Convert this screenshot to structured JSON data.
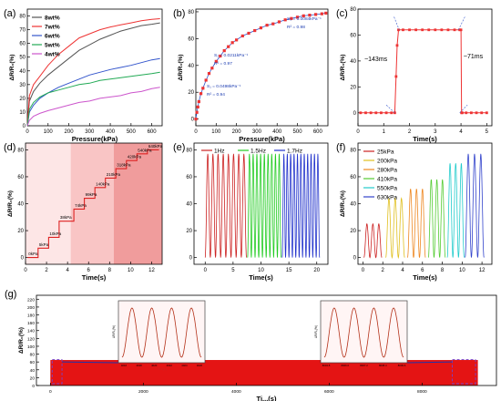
{
  "chart_data": [
    {
      "panel": "(a)",
      "type": "line",
      "xlabel": "Pressure(kPa)",
      "ylabel": "ΔR/R₀(%)",
      "xlim": [
        0,
        650
      ],
      "ylim": [
        0,
        85
      ],
      "xticks": [
        0,
        100,
        200,
        300,
        400,
        500,
        600
      ],
      "yticks": [
        0,
        10,
        20,
        30,
        40,
        50,
        60,
        70,
        80
      ],
      "legend": "top-left",
      "series": [
        {
          "name": "8wt%",
          "color": "#555555",
          "x": [
            0,
            10,
            30,
            60,
            100,
            150,
            200,
            250,
            300,
            350,
            400,
            450,
            500,
            550,
            600,
            640
          ],
          "y": [
            0,
            18,
            25,
            31,
            37,
            43,
            49,
            55,
            59,
            63,
            66,
            69,
            71,
            73,
            74,
            75
          ]
        },
        {
          "name": "7wt%",
          "color": "#ee3333",
          "x": [
            0,
            10,
            30,
            60,
            100,
            150,
            200,
            250,
            300,
            350,
            400,
            450,
            500,
            550,
            600,
            640
          ],
          "y": [
            0,
            22,
            30,
            36,
            44,
            52,
            58,
            64,
            67,
            70,
            72,
            73.5,
            75,
            76.5,
            77.5,
            78
          ]
        },
        {
          "name": "6wt%",
          "color": "#3355cc",
          "x": [
            0,
            10,
            30,
            60,
            100,
            150,
            200,
            250,
            300,
            350,
            400,
            450,
            500,
            550,
            600,
            640
          ],
          "y": [
            0,
            10,
            15,
            20,
            24,
            28,
            31,
            34,
            37,
            39,
            41,
            42.5,
            44,
            46,
            48,
            49
          ]
        },
        {
          "name": "5wt%",
          "color": "#22aa55",
          "x": [
            0,
            10,
            30,
            60,
            100,
            150,
            200,
            250,
            300,
            350,
            400,
            450,
            500,
            550,
            600,
            640
          ],
          "y": [
            0,
            12,
            17,
            21,
            24,
            26,
            28,
            30,
            31,
            33,
            34,
            35,
            36,
            37,
            38,
            39
          ]
        },
        {
          "name": "4wt%",
          "color": "#cc55cc",
          "x": [
            0,
            10,
            30,
            60,
            100,
            150,
            200,
            250,
            300,
            350,
            400,
            450,
            500,
            550,
            600,
            640
          ],
          "y": [
            0,
            4,
            7,
            9,
            11,
            13,
            15,
            17,
            18,
            20,
            21,
            22,
            24,
            25,
            27,
            28
          ]
        }
      ]
    },
    {
      "panel": "(b)",
      "type": "scatter",
      "xlabel": "Pressure(kPa)",
      "ylabel": "ΔR/R₀(%)",
      "xlim": [
        0,
        650
      ],
      "ylim": [
        -5,
        82
      ],
      "xticks": [
        0,
        100,
        200,
        300,
        400,
        500,
        600
      ],
      "yticks": [
        0,
        20,
        40,
        60,
        80
      ],
      "series": [
        {
          "name": "",
          "color": "#ee3333",
          "x": [
            0,
            5,
            10,
            15,
            25,
            35,
            50,
            65,
            80,
            100,
            120,
            140,
            160,
            180,
            200,
            230,
            260,
            290,
            320,
            350,
            380,
            410,
            440,
            470,
            500,
            530,
            560,
            590,
            620,
            640
          ],
          "y": [
            0,
            5,
            9,
            13,
            19,
            23,
            29,
            34,
            38,
            43,
            47,
            51,
            54,
            57,
            59,
            62,
            64,
            66,
            68,
            70,
            71,
            72.5,
            74,
            75,
            76,
            77,
            77.5,
            78,
            78.5,
            79
          ]
        }
      ],
      "annotations": [
        {
          "text": "S₃ = 0.0084kPa⁻¹"
        },
        {
          "text": "R² = 0.98"
        },
        {
          "text": "S₂ = 0.0211kPa⁻¹"
        },
        {
          "text": "R² = 0.97"
        },
        {
          "text": "S₁ = 0.0498kPa⁻¹"
        },
        {
          "text": "R² = 0.94"
        }
      ]
    },
    {
      "panel": "(c)",
      "type": "line",
      "xlabel": "Time(s)",
      "ylabel": "ΔR/R₀(%)",
      "xlim": [
        0,
        5.2
      ],
      "ylim": [
        -10,
        80
      ],
      "xticks": [
        0,
        1,
        2,
        3,
        4,
        5
      ],
      "yticks": [
        0,
        20,
        40,
        60,
        80
      ],
      "series": [
        {
          "name": "",
          "color": "#ee3333",
          "x": [
            0.1,
            0.3,
            0.5,
            0.7,
            0.9,
            1.1,
            1.3,
            1.43,
            1.48,
            1.52,
            1.573,
            1.75,
            2.0,
            2.25,
            2.5,
            2.75,
            3.0,
            3.25,
            3.5,
            3.75,
            3.95,
            4.0,
            4.021,
            4.05,
            4.2,
            4.4,
            4.6,
            4.8,
            5.0
          ],
          "y": [
            0,
            0,
            0,
            0,
            0,
            0,
            0,
            0,
            28,
            52,
            64,
            64,
            64,
            64,
            64,
            64,
            64,
            64,
            64,
            64,
            64,
            64,
            0,
            0,
            0,
            0,
            0,
            0,
            0
          ]
        }
      ],
      "annotations": [
        {
          "text": "~143ms"
        },
        {
          "text": "~71ms"
        }
      ]
    },
    {
      "panel": "(d)",
      "type": "line",
      "xlabel": "Time(s)",
      "ylabel": "ΔR/R₀(%)",
      "xlim": [
        0,
        13
      ],
      "ylim": [
        -5,
        85
      ],
      "xticks": [
        0,
        2,
        4,
        6,
        8,
        10,
        12
      ],
      "yticks": [
        0,
        20,
        40,
        60,
        80
      ],
      "steps": [
        {
          "label": "0kPa",
          "x0": 0.2,
          "x1": 1.2,
          "y": 0
        },
        {
          "label": "5kPa",
          "x0": 1.2,
          "x1": 2.2,
          "y": 7
        },
        {
          "label": "10kPa",
          "x0": 2.2,
          "x1": 3.2,
          "y": 15
        },
        {
          "label": "38kPa",
          "x0": 3.2,
          "x1": 4.6,
          "y": 27
        },
        {
          "label": "74kPa",
          "x0": 4.6,
          "x1": 5.6,
          "y": 36
        },
        {
          "label": "99kPa",
          "x0": 5.6,
          "x1": 6.6,
          "y": 44
        },
        {
          "label": "140kPa",
          "x0": 6.6,
          "x1": 7.6,
          "y": 52
        },
        {
          "label": "210kPa",
          "x0": 7.6,
          "x1": 8.6,
          "y": 59
        },
        {
          "label": "318kPa",
          "x0": 8.6,
          "x1": 9.6,
          "y": 66
        },
        {
          "label": "420kPa",
          "x0": 9.6,
          "x1": 10.6,
          "y": 72
        },
        {
          "label": "540kPa",
          "x0": 10.6,
          "x1": 11.6,
          "y": 77
        },
        {
          "label": "640kPa",
          "x0": 11.6,
          "x1": 12.7,
          "y": 80
        }
      ],
      "bands": [
        {
          "x0": 0,
          "x1": 4.3,
          "color": "#fde6e6"
        },
        {
          "x0": 4.3,
          "x1": 8.4,
          "color": "#f9c5c5"
        },
        {
          "x0": 8.4,
          "x1": 13,
          "color": "#f09c9c"
        }
      ]
    },
    {
      "panel": "(e)",
      "type": "line",
      "xlabel": "Time(s)",
      "ylabel": "",
      "xlim": [
        -2,
        22
      ],
      "ylim": [
        -5,
        85
      ],
      "xticks": [
        0,
        5,
        10,
        15,
        20
      ],
      "yticks": [
        0,
        20,
        40,
        60,
        80
      ],
      "legend": "top-left",
      "series": [
        {
          "name": "1Hz",
          "color": "#cc2222",
          "x0": 0,
          "x1": 7.4,
          "cycles": 8,
          "amp": 77
        },
        {
          "name": "1.5Hz",
          "color": "#22cc22",
          "x0": 7.6,
          "x1": 13.6,
          "cycles": 9,
          "amp": 77
        },
        {
          "name": "1.7Hz",
          "color": "#2233cc",
          "x0": 13.8,
          "x1": 20.5,
          "cycles": 11,
          "amp": 77
        }
      ]
    },
    {
      "panel": "(f)",
      "type": "line",
      "xlabel": "Time(s)",
      "ylabel": "ΔR/R₀(%)",
      "xlim": [
        -0.5,
        13
      ],
      "ylim": [
        -5,
        85
      ],
      "xticks": [
        0,
        2,
        4,
        6,
        8,
        10,
        12
      ],
      "yticks": [
        0,
        20,
        40,
        60,
        80
      ],
      "legend": "top-left",
      "series": [
        {
          "name": "25kPa",
          "color": "#cc2222",
          "x0": 0.1,
          "x1": 1.9,
          "cycles": 3,
          "amp": 25
        },
        {
          "name": "200kPa",
          "color": "#e0c020",
          "x0": 2.3,
          "x1": 4.2,
          "cycles": 3,
          "amp": 44
        },
        {
          "name": "280kPa",
          "color": "#ee8822",
          "x0": 4.5,
          "x1": 6.3,
          "cycles": 3,
          "amp": 51
        },
        {
          "name": "410kPa",
          "color": "#55cc33",
          "x0": 6.6,
          "x1": 8.3,
          "cycles": 3,
          "amp": 58
        },
        {
          "name": "550kPa",
          "color": "#22cccc",
          "x0": 8.5,
          "x1": 10.2,
          "cycles": 3,
          "amp": 70
        },
        {
          "name": "630kPa",
          "color": "#3344cc",
          "x0": 10.3,
          "x1": 12.2,
          "cycles": 3,
          "amp": 77
        }
      ]
    },
    {
      "panel": "(g)",
      "type": "line",
      "xlabel": "Ti...(s)",
      "ylabel": "ΔR/R₀(%)",
      "xlim": [
        -300,
        9600
      ],
      "ylim": [
        0,
        230
      ],
      "xticks": [
        0,
        2000,
        4000,
        6000,
        8000
      ],
      "yticks": [
        0,
        20,
        40,
        60,
        80,
        100,
        120,
        140,
        160,
        180,
        200,
        220
      ],
      "band_amp": 65,
      "insets": [
        {
          "xlabel": "Time(s)",
          "ylabel": "ΔR/R₀(%)",
          "xticks": [
            "4016",
            "4018",
            "4020",
            "4022",
            "4024",
            "4026"
          ],
          "cycles": 4
        },
        {
          "xlabel": "Time(s)",
          "ylabel": "ΔR/R₀(%)",
          "xticks": [
            "8004.8",
            "8006.0",
            "8007.2",
            "8008.4",
            "8009.6"
          ],
          "cycles": 4
        }
      ]
    }
  ]
}
